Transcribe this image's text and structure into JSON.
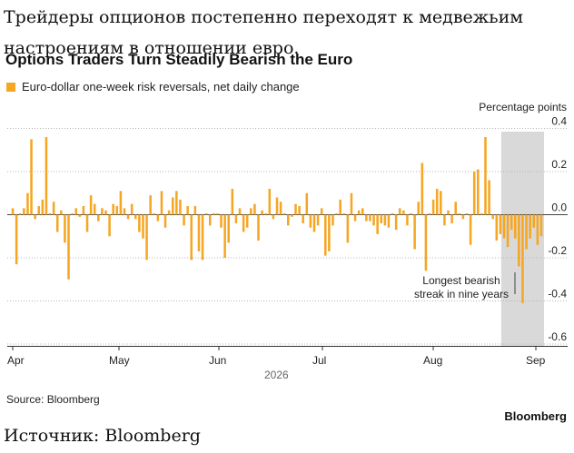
{
  "article": {
    "headline_ru": "Трейдеры опционов постепенно переходят к медвежьим настроениям в отношении евро.",
    "source_ru": "Источник: Bloomberg"
  },
  "chart_data": {
    "type": "bar",
    "title": "Options Traders Turn Steadily Bearish the Euro",
    "legend": [
      "Euro-dollar one-week risk reversals, net daily change"
    ],
    "legend_placement": "top-left",
    "ylabel": "Percentage points",
    "ylim": [
      -0.65,
      0.45
    ],
    "yticks": [
      0.4,
      0.2,
      0.0,
      -0.2,
      -0.4,
      -0.6
    ],
    "ytick_labels": [
      "0.4",
      "0.2",
      "0.0",
      "-0.2",
      "-0.4",
      "-0.6"
    ],
    "x_month_labels": [
      "Apr",
      "May",
      "Jun",
      "Jul",
      "Aug",
      "Sep"
    ],
    "x_year_label": "2026",
    "grid": "horizontal dotted",
    "bar_color": "#f5a623",
    "shade_color": "#d9d9d9",
    "annotation": "Longest bearish streak in nine years",
    "source": "Source: Bloomberg",
    "brand": "Bloomberg",
    "series": [
      {
        "name": "Euro-dollar one-week risk reversals, net daily change",
        "values": [
          0.03,
          -0.23,
          0.0,
          0.03,
          0.1,
          0.35,
          -0.02,
          0.04,
          0.07,
          0.36,
          0.0,
          0.06,
          -0.08,
          0.02,
          -0.13,
          -0.3,
          0.0,
          0.03,
          -0.01,
          0.04,
          -0.08,
          0.09,
          0.05,
          -0.03,
          0.03,
          0.02,
          -0.1,
          0.05,
          0.04,
          0.11,
          0.03,
          -0.02,
          0.05,
          -0.02,
          -0.08,
          -0.11,
          -0.21,
          0.09,
          0.0,
          -0.03,
          0.11,
          -0.06,
          0.02,
          0.08,
          0.11,
          0.07,
          -0.05,
          0.04,
          -0.21,
          0.04,
          -0.17,
          -0.21,
          0.0,
          -0.05,
          0.0,
          0.0,
          -0.06,
          -0.2,
          -0.13,
          0.12,
          -0.04,
          0.03,
          -0.08,
          -0.06,
          0.03,
          0.05,
          -0.12,
          0.02,
          0.0,
          0.12,
          -0.02,
          0.08,
          0.06,
          0.0,
          -0.05,
          -0.01,
          0.05,
          0.04,
          -0.04,
          0.1,
          -0.06,
          -0.08,
          -0.05,
          0.03,
          -0.19,
          -0.17,
          -0.05,
          0.0,
          0.07,
          0.0,
          -0.13,
          0.1,
          -0.03,
          0.02,
          0.03,
          -0.03,
          -0.03,
          -0.05,
          -0.09,
          -0.04,
          -0.05,
          -0.06,
          0.0,
          -0.07,
          0.03,
          0.02,
          -0.05,
          0.0,
          -0.16,
          0.06,
          0.24,
          -0.26,
          0.0,
          0.07,
          0.12,
          0.11,
          -0.05,
          0.02,
          -0.04,
          0.06,
          0.0,
          -0.02,
          0.0,
          -0.14,
          0.2,
          0.21,
          0.0,
          0.36,
          0.16,
          -0.02,
          -0.12,
          -0.09,
          -0.11,
          -0.15,
          -0.07,
          -0.11,
          -0.24,
          -0.41,
          -0.16,
          -0.11,
          -0.06,
          -0.14,
          -0.1
        ]
      }
    ]
  }
}
